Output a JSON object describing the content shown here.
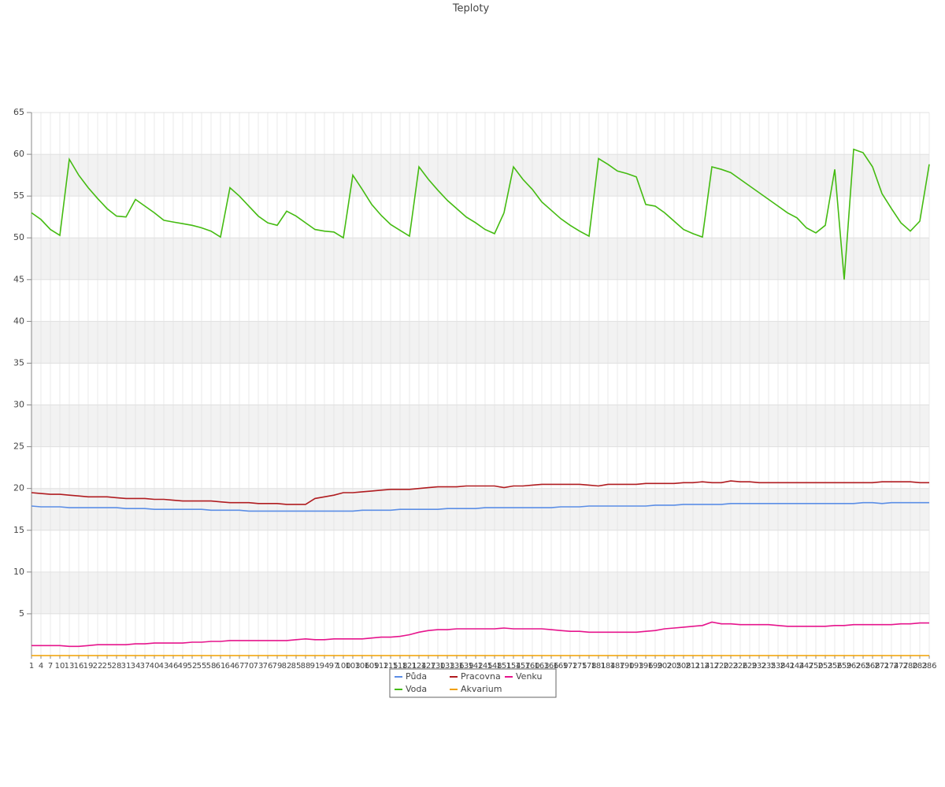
{
  "chart_data": {
    "type": "line",
    "title": "Teploty",
    "x": [
      1,
      4,
      7,
      10,
      13,
      16,
      19,
      22,
      25,
      28,
      31,
      34,
      37,
      40,
      43,
      46,
      49,
      52,
      55,
      58,
      61,
      64,
      67,
      70,
      73,
      76,
      79,
      82,
      85,
      88,
      91,
      94,
      97,
      100,
      103,
      106,
      109,
      112,
      115,
      118,
      121,
      124,
      127,
      130,
      133,
      136,
      139,
      142,
      145,
      148,
      151,
      154,
      157,
      160,
      163,
      166,
      169,
      172,
      175,
      178,
      181,
      184,
      187,
      190,
      193,
      196,
      199,
      202,
      205,
      208,
      211,
      214,
      217,
      220,
      223,
      226,
      229,
      232,
      235,
      238,
      241,
      244,
      247,
      250,
      253,
      256,
      259,
      262,
      265,
      268,
      271,
      274,
      277,
      280,
      283,
      286
    ],
    "xlim": [
      1,
      286
    ],
    "ylim": [
      0,
      65
    ],
    "yticks": [
      5,
      10,
      15,
      20,
      25,
      30,
      35,
      40,
      45,
      50,
      55,
      60,
      65
    ],
    "grid": true,
    "legend": "bottom",
    "series": [
      {
        "name": "Půda",
        "color": "#5b8ee6",
        "values": [
          17.9,
          17.8,
          17.8,
          17.8,
          17.7,
          17.7,
          17.7,
          17.7,
          17.7,
          17.7,
          17.6,
          17.6,
          17.6,
          17.5,
          17.5,
          17.5,
          17.5,
          17.5,
          17.5,
          17.4,
          17.4,
          17.4,
          17.4,
          17.3,
          17.3,
          17.3,
          17.3,
          17.3,
          17.3,
          17.3,
          17.3,
          17.3,
          17.3,
          17.3,
          17.3,
          17.4,
          17.4,
          17.4,
          17.4,
          17.5,
          17.5,
          17.5,
          17.5,
          17.5,
          17.6,
          17.6,
          17.6,
          17.6,
          17.7,
          17.7,
          17.7,
          17.7,
          17.7,
          17.7,
          17.7,
          17.7,
          17.8,
          17.8,
          17.8,
          17.9,
          17.9,
          17.9,
          17.9,
          17.9,
          17.9,
          17.9,
          18.0,
          18.0,
          18.0,
          18.1,
          18.1,
          18.1,
          18.1,
          18.1,
          18.2,
          18.2,
          18.2,
          18.2,
          18.2,
          18.2,
          18.2,
          18.2,
          18.2,
          18.2,
          18.2,
          18.2,
          18.2,
          18.2,
          18.3,
          18.3,
          18.2,
          18.3,
          18.3,
          18.3,
          18.3,
          18.3
        ]
      },
      {
        "name": "Pracovna",
        "color": "#b01c20",
        "values": [
          19.5,
          19.4,
          19.3,
          19.3,
          19.2,
          19.1,
          19.0,
          19.0,
          19.0,
          18.9,
          18.8,
          18.8,
          18.8,
          18.7,
          18.7,
          18.6,
          18.5,
          18.5,
          18.5,
          18.5,
          18.4,
          18.3,
          18.3,
          18.3,
          18.2,
          18.2,
          18.2,
          18.1,
          18.1,
          18.1,
          18.8,
          19.0,
          19.2,
          19.5,
          19.5,
          19.6,
          19.7,
          19.8,
          19.9,
          19.9,
          19.9,
          20.0,
          20.1,
          20.2,
          20.2,
          20.2,
          20.3,
          20.3,
          20.3,
          20.3,
          20.1,
          20.3,
          20.3,
          20.4,
          20.5,
          20.5,
          20.5,
          20.5,
          20.5,
          20.4,
          20.3,
          20.5,
          20.5,
          20.5,
          20.5,
          20.6,
          20.6,
          20.6,
          20.6,
          20.7,
          20.7,
          20.8,
          20.7,
          20.7,
          20.9,
          20.8,
          20.8,
          20.7,
          20.7,
          20.7,
          20.7,
          20.7,
          20.7,
          20.7,
          20.7,
          20.7,
          20.7,
          20.7,
          20.7,
          20.7,
          20.8,
          20.8,
          20.8,
          20.8,
          20.7,
          20.7
        ]
      },
      {
        "name": "Venku",
        "color": "#e6148c",
        "values": [
          1.2,
          1.2,
          1.2,
          1.2,
          1.1,
          1.1,
          1.2,
          1.3,
          1.3,
          1.3,
          1.3,
          1.4,
          1.4,
          1.5,
          1.5,
          1.5,
          1.5,
          1.6,
          1.6,
          1.7,
          1.7,
          1.8,
          1.8,
          1.8,
          1.8,
          1.8,
          1.8,
          1.8,
          1.9,
          2.0,
          1.9,
          1.9,
          2.0,
          2.0,
          2.0,
          2.0,
          2.1,
          2.2,
          2.2,
          2.3,
          2.5,
          2.8,
          3.0,
          3.1,
          3.1,
          3.2,
          3.2,
          3.2,
          3.2,
          3.2,
          3.3,
          3.2,
          3.2,
          3.2,
          3.2,
          3.1,
          3.0,
          2.9,
          2.9,
          2.8,
          2.8,
          2.8,
          2.8,
          2.8,
          2.8,
          2.9,
          3.0,
          3.2,
          3.3,
          3.4,
          3.5,
          3.6,
          4.0,
          3.8,
          3.8,
          3.7,
          3.7,
          3.7,
          3.7,
          3.6,
          3.5,
          3.5,
          3.5,
          3.5,
          3.5,
          3.6,
          3.6,
          3.7,
          3.7,
          3.7,
          3.7,
          3.7,
          3.8,
          3.8,
          3.9,
          3.9
        ]
      },
      {
        "name": "Voda",
        "color": "#44bb11",
        "values": [
          53.0,
          52.2,
          51.0,
          50.3,
          59.4,
          57.5,
          56.0,
          54.7,
          53.5,
          52.6,
          52.5,
          54.6,
          53.8,
          53.0,
          52.1,
          51.9,
          51.7,
          51.5,
          51.2,
          50.8,
          50.1,
          56.0,
          55.0,
          53.8,
          52.6,
          51.8,
          51.5,
          53.2,
          52.6,
          51.8,
          51.0,
          50.8,
          50.7,
          50.0,
          57.5,
          55.8,
          54.0,
          52.7,
          51.6,
          50.9,
          50.2,
          58.5,
          57.0,
          55.7,
          54.5,
          53.5,
          52.5,
          51.8,
          51.0,
          50.5,
          53.0,
          58.5,
          57.0,
          55.8,
          54.3,
          53.3,
          52.3,
          51.5,
          50.8,
          50.2,
          59.5,
          58.8,
          58.0,
          57.7,
          57.3,
          54.0,
          53.8,
          53.0,
          52.0,
          51.0,
          50.5,
          50.1,
          58.5,
          58.2,
          57.8,
          57.0,
          56.2,
          55.4,
          54.6,
          53.8,
          53.0,
          52.4,
          51.2,
          50.6,
          51.5,
          58.2,
          45.0,
          60.6,
          60.2,
          58.5,
          55.3,
          53.5,
          51.8,
          50.8,
          52.0,
          58.8
        ]
      },
      {
        "name": "Akvarium",
        "color": "#f0a000",
        "values": [
          0,
          0,
          0,
          0,
          0,
          0,
          0,
          0,
          0,
          0,
          0,
          0,
          0,
          0,
          0,
          0,
          0,
          0,
          0,
          0,
          0,
          0,
          0,
          0,
          0,
          0,
          0,
          0,
          0,
          0,
          0,
          0,
          0,
          0,
          0,
          0,
          0,
          0,
          0,
          0,
          0,
          0,
          0,
          0,
          0,
          0,
          0,
          0,
          0,
          0,
          0,
          0,
          0,
          0,
          0,
          0,
          0,
          0,
          0,
          0,
          0,
          0,
          0,
          0,
          0,
          0,
          0,
          0,
          0,
          0,
          0,
          0,
          0,
          0,
          0,
          0,
          0,
          0,
          0,
          0,
          0,
          0,
          0,
          0,
          0,
          0,
          0,
          0,
          0,
          0,
          0,
          0,
          0,
          0,
          0,
          0
        ]
      }
    ]
  }
}
